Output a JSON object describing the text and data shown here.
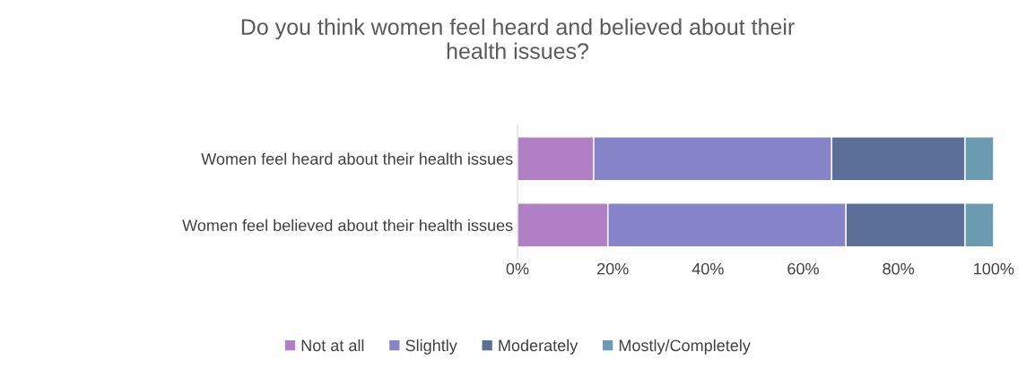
{
  "chart_data": {
    "type": "bar",
    "orientation": "horizontal",
    "stacked": true,
    "title": "Do you think women feel heard and believed about their\nhealth issues?",
    "categories": [
      "Women feel heard about their health issues",
      "Women feel believed about their health issues"
    ],
    "series": [
      {
        "name": "Not at all",
        "color": "#b07fc6",
        "values": [
          16,
          19
        ]
      },
      {
        "name": "Slightly",
        "color": "#8783c8",
        "values": [
          50,
          50
        ]
      },
      {
        "name": "Moderately",
        "color": "#5b6f98",
        "values": [
          28,
          25
        ]
      },
      {
        "name": "Mostly/Completely",
        "color": "#6a9bb0",
        "values": [
          6,
          6
        ]
      }
    ],
    "xlim": [
      0,
      100
    ],
    "xticks": [
      {
        "value": 0,
        "label": "0%"
      },
      {
        "value": 20,
        "label": "20%"
      },
      {
        "value": 40,
        "label": "40%"
      },
      {
        "value": 60,
        "label": "60%"
      },
      {
        "value": 80,
        "label": "80%"
      },
      {
        "value": 100,
        "label": "100%"
      }
    ],
    "grid": false,
    "legend": "bottom"
  }
}
